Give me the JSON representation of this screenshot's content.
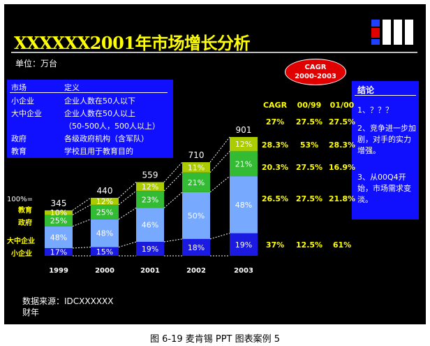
{
  "title": "XXXXXX2001年市场增长分析",
  "unit": "单位：万台",
  "cagr_badge": {
    "line1": "CAGR",
    "line2": "2000-2003"
  },
  "definition_table": {
    "headers": [
      "市场",
      "定义"
    ],
    "rows": [
      [
        "小企业",
        "企业人数在50人以下"
      ],
      [
        "大中企业",
        "企业人数在50人以上"
      ],
      [
        "",
        "（50-500人，500人以上）"
      ],
      [
        "政府",
        "各级政府机构（含军队）"
      ],
      [
        "教育",
        "学校且用于教育目的"
      ]
    ]
  },
  "conclusion": {
    "title": "结论",
    "items": [
      "1、？？？",
      "2、竞争进一步加剧，对手的实力增强。",
      "3、从00Q4开始，市场需求变淡。"
    ]
  },
  "source": {
    "line1": "数据来源：IDCXXXXXX",
    "line2": "财年"
  },
  "caption": "图 6-19 麦肯锡 PPT 图表案例 5",
  "y_labels": {
    "hundred": "100%=",
    "education": "教育",
    "government": "政府",
    "large": "大中企业",
    "small": "小企业"
  },
  "colors": {
    "education": "#aacc00",
    "government": "#33bb33",
    "large": "#77aaff",
    "small": "#1a1ae0",
    "text_yellow": "#ffff00",
    "box_blue": "#1010ff",
    "badge_red": "#e00000"
  },
  "chart_data": {
    "type": "bar",
    "stacked": "percent",
    "categories": [
      "1999",
      "2000",
      "2001",
      "2002",
      "2003"
    ],
    "totals": [
      345,
      440,
      559,
      710,
      901
    ],
    "series": [
      {
        "key": "small",
        "name": "小企业",
        "values": [
          17,
          15,
          19,
          18,
          19
        ]
      },
      {
        "key": "large",
        "name": "大中企业",
        "values": [
          48,
          48,
          46,
          50,
          48
        ]
      },
      {
        "key": "government",
        "name": "政府",
        "values": [
          25,
          25,
          23,
          21,
          21
        ]
      },
      {
        "key": "education",
        "name": "教育",
        "values": [
          10,
          12,
          12,
          11,
          12
        ]
      }
    ],
    "cagr_table": {
      "headers": [
        "CAGR",
        "00/99",
        "01/00"
      ],
      "rows": [
        {
          "key": "education",
          "values": [
            "27%",
            "27.5%",
            "27.5%"
          ]
        },
        {
          "key": "government",
          "values": [
            "28.3%",
            "53%",
            "28.3%"
          ]
        },
        {
          "key": "government2",
          "values": [
            "20.3%",
            "27.5%",
            "16.9%"
          ]
        },
        {
          "key": "large",
          "values": [
            "26.5%",
            "27.5%",
            "21.8%"
          ]
        },
        {
          "key": "small",
          "values": [
            "37%",
            "12.5%",
            "61%"
          ]
        }
      ]
    }
  }
}
